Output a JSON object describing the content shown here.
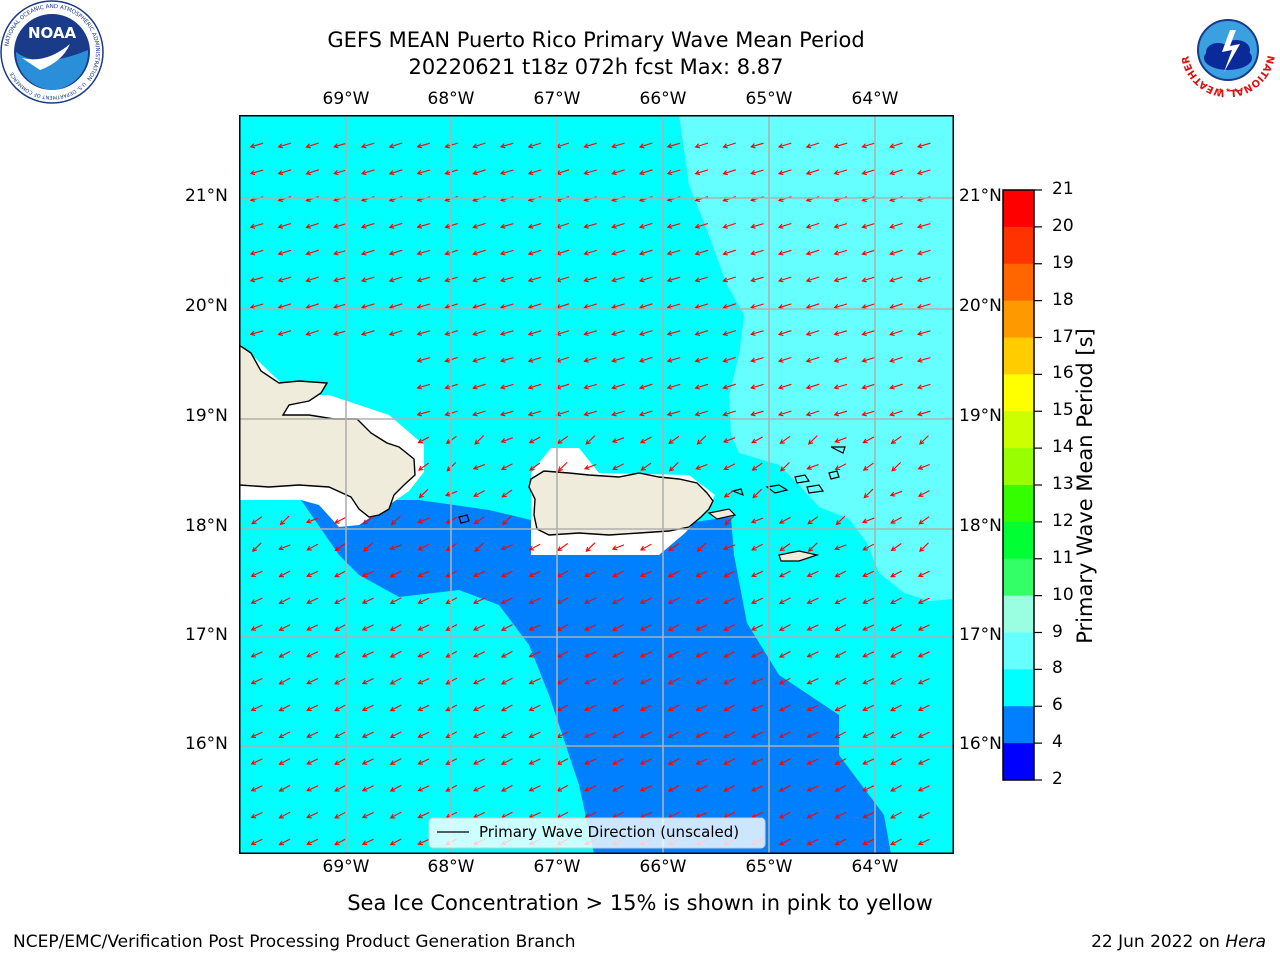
{
  "header": {
    "title_line1": "GEFS MEAN Puerto Rico Primary Wave Mean Period",
    "title_line2": "20220621 t18z 072h fcst   Max: 8.87"
  },
  "logos": {
    "left_ring_text": "NATIONAL OCEANIC AND ATMOSPHERIC ADMINISTRATION",
    "left_bottom_text": "U.S. DEPARTMENT OF COMMERCE",
    "left_center_text": "NOAA",
    "right_ring_text": "NATIONAL WEATHER SERVICE"
  },
  "map": {
    "lon_labels": [
      "69°W",
      "68°W",
      "67°W",
      "66°W",
      "65°W",
      "64°W"
    ],
    "lat_labels": [
      "21°N",
      "20°N",
      "19°N",
      "18°N",
      "17°N",
      "16°N"
    ],
    "arrow_color": "#ff0000",
    "legend_label": "Primary Wave Direction (unscaled)",
    "fill_colors": {
      "4-6": "#0080ff",
      "6-8": "#00ffff",
      "8-9": "#66ffff",
      "land": "#efecdc"
    }
  },
  "colorbar": {
    "label": "Primary Wave Mean Period [s]",
    "ticks": [
      "21",
      "20",
      "19",
      "18",
      "17",
      "16",
      "15",
      "14",
      "13",
      "12",
      "11",
      "10",
      "9",
      "8",
      "6",
      "4",
      "2"
    ],
    "colors": [
      "#ff0000",
      "#ff3300",
      "#ff6600",
      "#ff9900",
      "#ffcc00",
      "#ffff00",
      "#ccff00",
      "#99ff00",
      "#33ff00",
      "#00ff33",
      "#33ff66",
      "#99ffe0",
      "#66ffff",
      "#00ffff",
      "#0080ff",
      "#0000ff"
    ]
  },
  "notes": {
    "sea_ice": "Sea Ice Concentration > 15% is shown in pink to yellow"
  },
  "footer": {
    "left": "NCEP/EMC/Verification Post Processing Product Generation Branch",
    "date": "22 Jun 2022 on ",
    "machine": "Hera"
  }
}
